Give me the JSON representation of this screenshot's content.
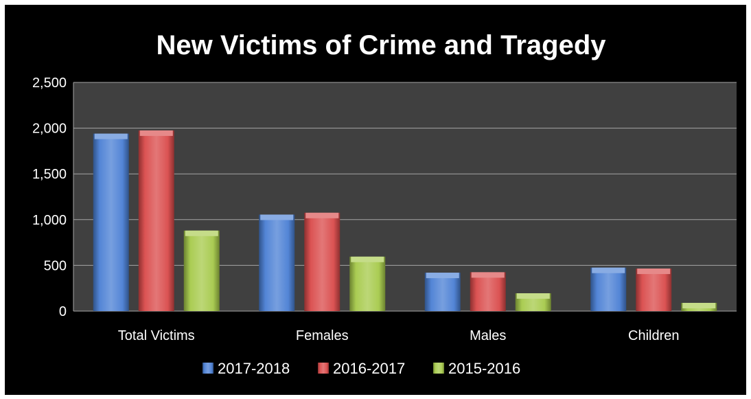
{
  "chart_data": {
    "type": "bar",
    "title": "New Victims of Crime and Tragedy",
    "xlabel": "",
    "ylabel": "",
    "ylim": [
      0,
      2500
    ],
    "yticks": [
      0,
      500,
      1000,
      1500,
      2000,
      2500
    ],
    "ytick_labels": [
      "0",
      "500",
      "1,000",
      "1,500",
      "2,000",
      "2,500"
    ],
    "grid": true,
    "legend_position": "bottom",
    "categories": [
      "Total Victims",
      "Females",
      "Males",
      "Children"
    ],
    "series": [
      {
        "name": "2017-2018",
        "color": "#4a7fd4",
        "values": [
          1940,
          1055,
          420,
          475
        ]
      },
      {
        "name": "2016-2017",
        "color": "#d94a4a",
        "values": [
          1975,
          1075,
          425,
          465
        ]
      },
      {
        "name": "2015-2016",
        "color": "#a6c94a",
        "values": [
          880,
          595,
          195,
          90
        ]
      }
    ],
    "colors": {
      "background": "#000000",
      "plot_area": "#404040",
      "gridline": "#a6a6a6",
      "text": "#ffffff"
    }
  }
}
